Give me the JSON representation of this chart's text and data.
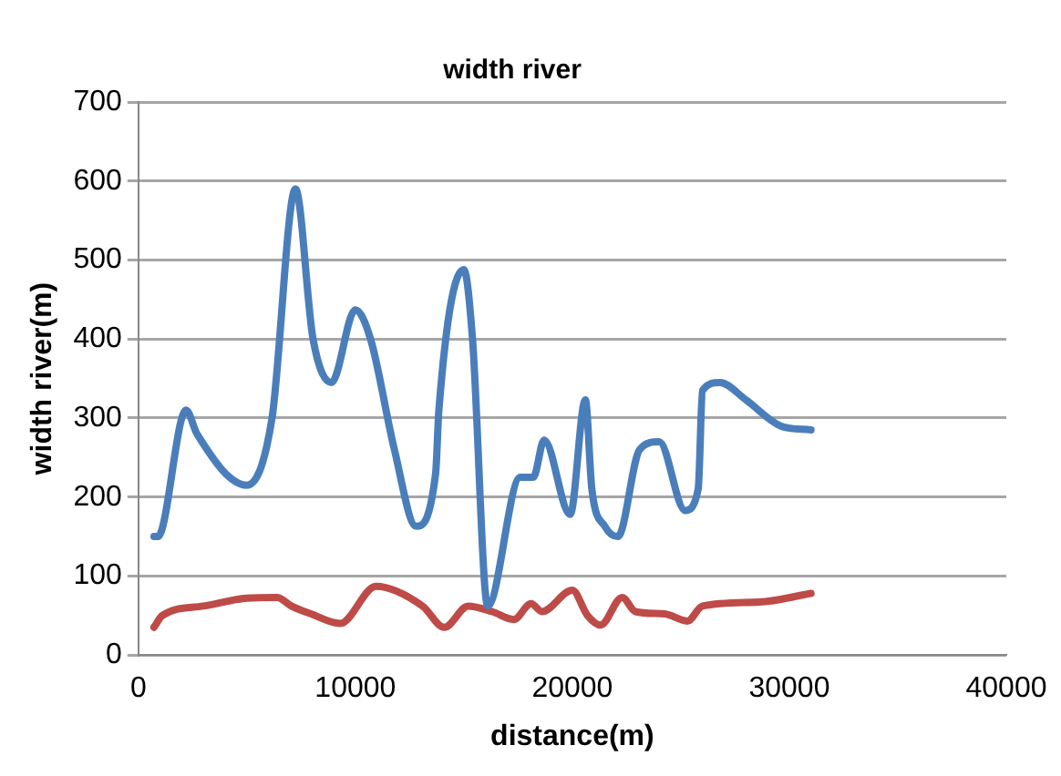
{
  "chart_data": {
    "type": "line",
    "title": "width river",
    "xlabel": "distance(m)",
    "ylabel": "width river(m)",
    "xlim": [
      0,
      40000
    ],
    "xticks": [
      0,
      10000,
      20000,
      30000,
      40000
    ],
    "ylim": [
      0,
      700
    ],
    "yticks": [
      0,
      100,
      200,
      300,
      400,
      500,
      600,
      700
    ],
    "grid": "y",
    "marker": "none",
    "line_style": "solid",
    "series": [
      {
        "color": "#4a7ebb",
        "x": [
          720,
          900,
          2200,
          2700,
          5000,
          6150,
          7240,
          8050,
          8900,
          10000,
          10700,
          11800,
          12800,
          13700,
          13850,
          15000,
          15400,
          16100,
          17600,
          18200,
          18700,
          19900,
          20600,
          20900,
          21500,
          22100,
          23100,
          24000,
          25200,
          25800,
          26000,
          26800,
          28000,
          29600,
          31000
        ],
        "values": [
          150,
          150,
          310,
          280,
          215,
          298,
          590,
          400,
          345,
          437,
          400,
          260,
          163,
          230,
          310,
          488,
          400,
          62,
          225,
          225,
          272,
          178,
          323,
          210,
          163,
          150,
          260,
          270,
          183,
          210,
          335,
          345,
          323,
          290,
          285
        ]
      },
      {
        "color": "#be4b48",
        "x": [
          720,
          1100,
          3000,
          5000,
          6400,
          7050,
          7960,
          9300,
          10950,
          13100,
          14100,
          15200,
          16300,
          17300,
          18100,
          18600,
          20000,
          20700,
          21300,
          22300,
          22900,
          24250,
          25300,
          26000,
          28600,
          31000
        ],
        "values": [
          35,
          50,
          62,
          72,
          73,
          62,
          52,
          40,
          87,
          62,
          35,
          62,
          55,
          45,
          65,
          55,
          82,
          50,
          38,
          73,
          55,
          52,
          43,
          62,
          67,
          78
        ]
      }
    ]
  }
}
